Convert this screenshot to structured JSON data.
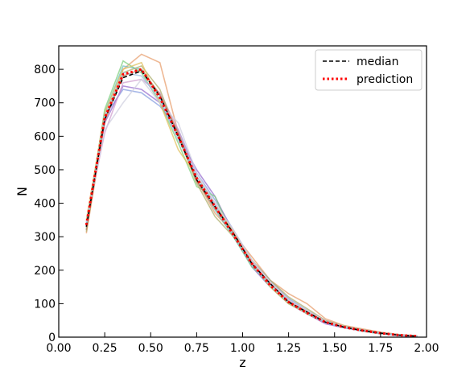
{
  "chart_data": {
    "type": "line",
    "xlabel": "z",
    "ylabel": "N",
    "xlim": [
      0.0,
      2.0
    ],
    "ylim": [
      0,
      870
    ],
    "x_ticks": [
      "0.00",
      "0.25",
      "0.50",
      "0.75",
      "1.00",
      "1.25",
      "1.50",
      "1.75",
      "2.00"
    ],
    "y_ticks": [
      "0",
      "100",
      "200",
      "300",
      "400",
      "500",
      "600",
      "700",
      "800"
    ],
    "legend_position": "top-right",
    "x": [
      0.15,
      0.25,
      0.35,
      0.45,
      0.55,
      0.65,
      0.75,
      0.85,
      0.95,
      1.05,
      1.15,
      1.25,
      1.35,
      1.45,
      1.55,
      1.65,
      1.75,
      1.85,
      1.95
    ],
    "series": [
      {
        "name": "median",
        "style": "dashed",
        "color": "#000000",
        "values": [
          330,
          650,
          775,
          795,
          720,
          600,
          470,
          390,
          310,
          220,
          160,
          105,
          75,
          45,
          30,
          20,
          12,
          6,
          3
        ]
      },
      {
        "name": "prediction",
        "style": "dotted",
        "color": "#ff0000",
        "values": [
          335,
          655,
          785,
          800,
          715,
          600,
          475,
          390,
          305,
          220,
          155,
          105,
          72,
          45,
          30,
          20,
          12,
          6,
          3
        ]
      }
    ],
    "realizations": [
      {
        "color": "#e8a070",
        "values": [
          310,
          640,
          800,
          845,
          820,
          610,
          470,
          370,
          310,
          240,
          170,
          130,
          100,
          55,
          35,
          25,
          15,
          8,
          4
        ]
      },
      {
        "color": "#8aa0e0",
        "values": [
          340,
          660,
          740,
          730,
          690,
          620,
          490,
          410,
          320,
          230,
          170,
          115,
          80,
          50,
          32,
          22,
          13,
          7,
          3
        ]
      },
      {
        "color": "#9a70d0",
        "values": [
          330,
          640,
          750,
          740,
          700,
          600,
          500,
          420,
          310,
          210,
          150,
          100,
          70,
          40,
          28,
          18,
          10,
          5,
          2
        ]
      },
      {
        "color": "#80d080",
        "values": [
          325,
          680,
          825,
          790,
          700,
          580,
          450,
          420,
          300,
          210,
          160,
          105,
          70,
          45,
          30,
          18,
          10,
          6,
          3
        ]
      },
      {
        "color": "#70c0c0",
        "values": [
          320,
          670,
          810,
          800,
          720,
          610,
          470,
          380,
          300,
          215,
          150,
          100,
          72,
          44,
          29,
          19,
          11,
          6,
          3
        ]
      },
      {
        "color": "#d0a0d0",
        "values": [
          345,
          610,
          760,
          770,
          730,
          620,
          480,
          390,
          320,
          225,
          165,
          110,
          78,
          48,
          33,
          21,
          12,
          7,
          3
        ]
      },
      {
        "color": "#b0b070",
        "values": [
          315,
          650,
          790,
          810,
          740,
          600,
          460,
          360,
          300,
          230,
          170,
          120,
          85,
          50,
          34,
          22,
          13,
          7,
          3
        ]
      },
      {
        "color": "#e0c060",
        "values": [
          350,
          670,
          800,
          820,
          700,
          560,
          480,
          400,
          315,
          220,
          150,
          100,
          72,
          46,
          30,
          20,
          11,
          6,
          3
        ]
      },
      {
        "color": "#c08060",
        "values": [
          320,
          650,
          780,
          800,
          725,
          610,
          465,
          385,
          310,
          220,
          160,
          108,
          76,
          47,
          31,
          20,
          12,
          6,
          3
        ]
      },
      {
        "color": "#d0d0e0",
        "values": [
          340,
          620,
          700,
          770,
          700,
          640,
          490,
          400,
          320,
          230,
          165,
          110,
          80,
          48,
          32,
          21,
          12,
          6,
          3
        ]
      },
      {
        "color": "#a0c0e0",
        "values": [
          335,
          660,
          790,
          780,
          710,
          590,
          480,
          395,
          305,
          215,
          155,
          104,
          74,
          44,
          29,
          19,
          11,
          6,
          3
        ]
      }
    ]
  }
}
